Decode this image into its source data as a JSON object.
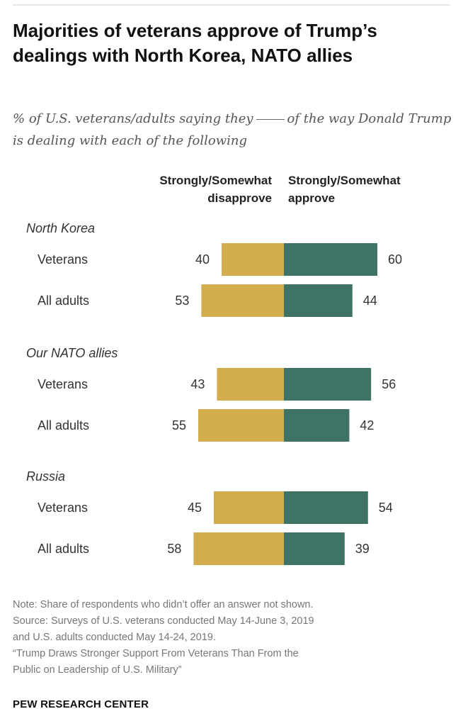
{
  "header": {
    "title": "Majorities of veterans approve of Trump’s dealings with North Korea, NATO allies",
    "subtitle_part1": "% of U.S. veterans/adults saying they",
    "subtitle_part2": "of the way Donald Trump is dealing with each of the following"
  },
  "columns": {
    "disapprove_line1": "Strongly/Somewhat",
    "disapprove_line2": "disapprove",
    "approve_line1": "Strongly/Somewhat",
    "approve_line2": "approve"
  },
  "colors": {
    "disapprove": "#D3AC4E",
    "approve": "#3F7365"
  },
  "chart_data": {
    "type": "bar",
    "orientation": "horizontal-diverging",
    "series": [
      {
        "name": "Strongly/Somewhat disapprove",
        "color": "#D3AC4E"
      },
      {
        "name": "Strongly/Somewhat approve",
        "color": "#3F7365"
      }
    ],
    "groups": [
      {
        "label": "North Korea",
        "rows": [
          {
            "label": "Veterans",
            "disapprove": 40,
            "approve": 60
          },
          {
            "label": "All adults",
            "disapprove": 53,
            "approve": 44
          }
        ]
      },
      {
        "label": "Our NATO allies",
        "rows": [
          {
            "label": "Veterans",
            "disapprove": 43,
            "approve": 56
          },
          {
            "label": "All adults",
            "disapprove": 55,
            "approve": 42
          }
        ]
      },
      {
        "label": "Russia",
        "rows": [
          {
            "label": "Veterans",
            "disapprove": 45,
            "approve": 54
          },
          {
            "label": "All adults",
            "disapprove": 58,
            "approve": 39
          }
        ]
      }
    ]
  },
  "footer": {
    "note_line1": "Note: Share of respondents who didn’t offer an answer not shown.",
    "note_line2": "Source: Surveys of U.S. veterans conducted May 14-June 3, 2019",
    "note_line3": "and U.S. adults conducted May 14-24, 2019.",
    "note_line4": "“Trump Draws Stronger Support From Veterans Than From the",
    "note_line5": "Public on Leadership of U.S. Military”",
    "brand": "PEW RESEARCH CENTER"
  }
}
